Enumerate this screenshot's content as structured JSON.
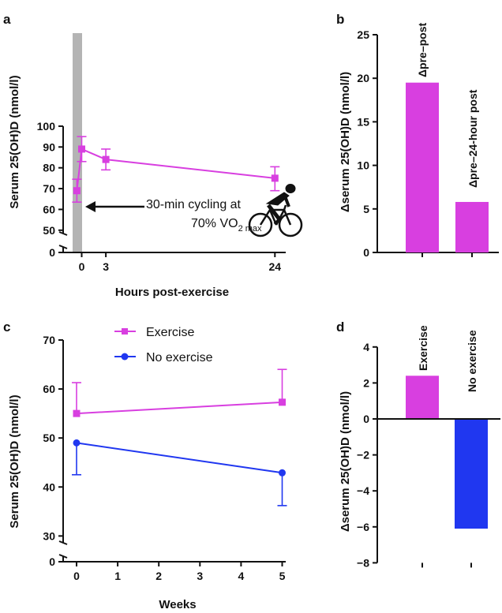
{
  "colors": {
    "exercise": "#d83fe0",
    "no_exercise": "#2037f0",
    "band": "#b4b4b4",
    "axis": "#111111"
  },
  "chart_data": [
    {
      "panel": "a",
      "type": "line",
      "xlabel": "Hours post-exercise",
      "ylabel": "Serum 25(OH)D (nmol/l)",
      "x_ticks": [
        "0",
        "3",
        "24"
      ],
      "y_ticks": [
        "0",
        "50",
        "60",
        "70",
        "80",
        "90",
        "100"
      ],
      "ylim": [
        0,
        100
      ],
      "y_axis_break": [
        0,
        45
      ],
      "shaded_band": "exercise period (before 0 h)",
      "series": [
        {
          "marker": "square",
          "points": [
            {
              "x": -0.6,
              "y": 69,
              "err_low": 63.5,
              "err_high": 74.5
            },
            {
              "x": 0,
              "y": 89,
              "err_low": 83,
              "err_high": 95
            },
            {
              "x": 3,
              "y": 84,
              "err_low": 79,
              "err_high": 89
            },
            {
              "x": 24,
              "y": 75,
              "err_low": 69,
              "err_high": 80.5
            }
          ]
        }
      ],
      "annotation_line1": "30-min cycling at",
      "annotation_line2": "70% VO",
      "annotation_sub": "2 max",
      "icon": "cyclist-icon"
    },
    {
      "panel": "b",
      "type": "bar",
      "ylabel": "Δserum 25(OH)D (nmol/l)",
      "categories": [
        "Δpre–post",
        "Δpre–24-hour post"
      ],
      "values": [
        19.5,
        5.8
      ],
      "ylim": [
        0,
        25
      ],
      "y_ticks": [
        "0",
        "5",
        "10",
        "15",
        "20",
        "25"
      ]
    },
    {
      "panel": "c",
      "type": "line",
      "xlabel": "Weeks",
      "ylabel": "Serum 25(OH)D (nmol/l)",
      "x_ticks": [
        "0",
        "1",
        "2",
        "3",
        "4",
        "5"
      ],
      "y_ticks": [
        "0",
        "30",
        "40",
        "50",
        "60",
        "70"
      ],
      "ylim": [
        0,
        70
      ],
      "y_axis_break": [
        0,
        27
      ],
      "legend_position": "top",
      "series": [
        {
          "name": "Exercise",
          "marker": "square",
          "points": [
            {
              "x": 0,
              "y": 55,
              "err_low": 55,
              "err_high": 61.3
            },
            {
              "x": 5,
              "y": 57.3,
              "err_low": 57.3,
              "err_high": 64
            }
          ]
        },
        {
          "name": "No exercise",
          "marker": "circle",
          "points": [
            {
              "x": 0,
              "y": 49,
              "err_low": 42.5,
              "err_high": 49
            },
            {
              "x": 5,
              "y": 42.9,
              "err_low": 36.2,
              "err_high": 42.9
            }
          ]
        }
      ]
    },
    {
      "panel": "d",
      "type": "bar",
      "ylabel": "Δserum 25(OH)D (nmol/l)",
      "categories": [
        "Exercise",
        "No exercise"
      ],
      "values": [
        2.4,
        -6.1
      ],
      "ylim": [
        -8,
        4
      ],
      "y_ticks": [
        "4",
        "2",
        "0",
        "−2",
        "−4",
        "−6",
        "−8"
      ]
    }
  ],
  "panel_labels": [
    "a",
    "b",
    "c",
    "d"
  ]
}
